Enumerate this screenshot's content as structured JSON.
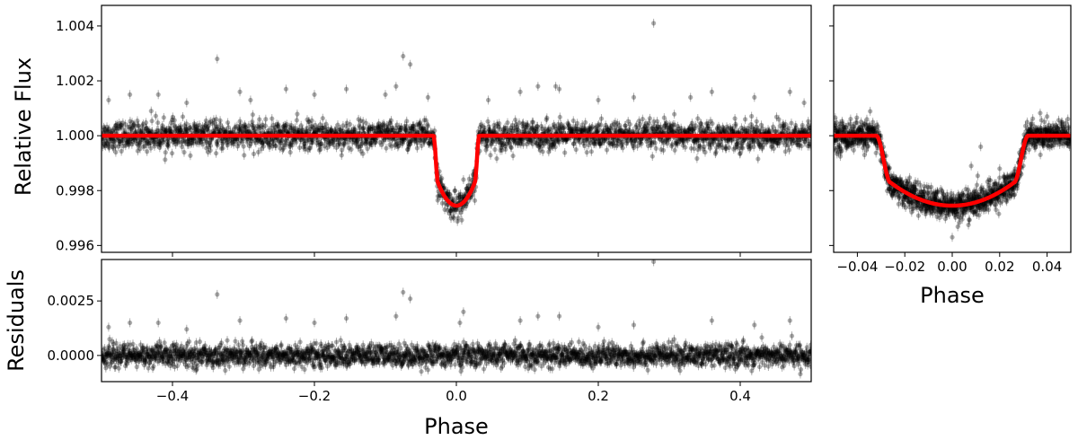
{
  "chart_data": [
    {
      "id": "main-flux",
      "type": "scatter",
      "xlabel": "",
      "ylabel": "Relative Flux",
      "xlim": [
        -0.5,
        0.5
      ],
      "ylim": [
        0.99575,
        1.00475
      ],
      "xticks": [
        -0.4,
        -0.2,
        0.0,
        0.2,
        0.4
      ],
      "xtick_labels": [
        "",
        "",
        "",
        "",
        ""
      ],
      "yticks": [
        0.996,
        0.998,
        1.0,
        1.002,
        1.004
      ],
      "ytick_labels": [
        "0.996",
        "0.998",
        "1.000",
        "1.002",
        "1.004"
      ],
      "grid": false,
      "series": [
        {
          "kind": "data",
          "marker": "points-with-errorbars",
          "color": "#000000",
          "baseline": 1.0,
          "scatter_sigma": 0.00025,
          "typical_error": 0.00022,
          "outliers": [
            [
              -0.49,
              1.0013
            ],
            [
              -0.46,
              1.0015
            ],
            [
              -0.43,
              1.0009
            ],
            [
              -0.42,
              1.0015
            ],
            [
              -0.38,
              1.0012
            ],
            [
              -0.337,
              1.0028
            ],
            [
              -0.305,
              1.0016
            ],
            [
              -0.29,
              1.0013
            ],
            [
              -0.24,
              1.0017
            ],
            [
              -0.2,
              1.0015
            ],
            [
              -0.155,
              1.0017
            ],
            [
              -0.1,
              1.0015
            ],
            [
              -0.085,
              1.0018
            ],
            [
              -0.075,
              1.0029
            ],
            [
              -0.065,
              1.0026
            ],
            [
              -0.04,
              1.0014
            ],
            [
              0.01,
              0.9984
            ],
            [
              0.045,
              1.0013
            ],
            [
              0.09,
              1.0016
            ],
            [
              0.115,
              1.0018
            ],
            [
              0.14,
              1.0018
            ],
            [
              0.145,
              1.0017
            ],
            [
              0.2,
              1.0013
            ],
            [
              0.25,
              1.0014
            ],
            [
              0.278,
              1.0041
            ],
            [
              0.33,
              1.0014
            ],
            [
              0.36,
              1.0016
            ],
            [
              0.42,
              1.0014
            ],
            [
              0.47,
              1.0016
            ],
            [
              0.49,
              1.0012
            ]
          ]
        },
        {
          "kind": "model",
          "line_color": "#ff0000",
          "depth": 0.00255,
          "t14": 0.064,
          "ingress": 0.006,
          "limb_darkening": 0.5
        }
      ]
    },
    {
      "id": "zoom-flux",
      "type": "scatter",
      "xlabel": "Phase",
      "ylabel": "",
      "xlim": [
        -0.05,
        0.05
      ],
      "ylim": [
        0.99575,
        1.00475
      ],
      "xticks": [
        -0.04,
        -0.02,
        0.0,
        0.02,
        0.04
      ],
      "xtick_labels": [
        "−0.04",
        "−0.02",
        "0.00",
        "0.02",
        "0.04"
      ],
      "yticks": [
        0.996,
        0.998,
        1.0,
        1.002,
        1.004
      ],
      "ytick_labels": [
        "",
        "",
        "",
        "",
        ""
      ],
      "grid": false,
      "outliers": [
        [
          -0.048,
          0.9994
        ],
        [
          -0.036,
          1.0006
        ],
        [
          0.0,
          0.9963
        ],
        [
          0.008,
          0.9989
        ],
        [
          0.012,
          0.9996
        ],
        [
          0.02,
          0.9988
        ],
        [
          0.04,
          1.0007
        ],
        [
          0.046,
          1.0005
        ]
      ]
    },
    {
      "id": "residuals",
      "type": "scatter",
      "xlabel": "Phase",
      "ylabel": "Residuals",
      "xlim": [
        -0.5,
        0.5
      ],
      "ylim": [
        -0.0012,
        0.0044
      ],
      "xticks": [
        -0.4,
        -0.2,
        0.0,
        0.2,
        0.4
      ],
      "xtick_labels": [
        "−0.4",
        "−0.2",
        "0.0",
        "0.2",
        "0.4"
      ],
      "yticks": [
        0.0,
        0.0025
      ],
      "ytick_labels": [
        "0.0000",
        "0.0025"
      ],
      "grid": false,
      "baseline": 0.0,
      "scatter_sigma": 0.00025,
      "outliers": [
        [
          -0.49,
          0.0013
        ],
        [
          -0.46,
          0.0015
        ],
        [
          -0.42,
          0.0015
        ],
        [
          -0.38,
          0.0012
        ],
        [
          -0.337,
          0.0028
        ],
        [
          -0.305,
          0.0016
        ],
        [
          -0.24,
          0.0017
        ],
        [
          -0.2,
          0.0015
        ],
        [
          -0.155,
          0.0017
        ],
        [
          -0.085,
          0.0018
        ],
        [
          -0.075,
          0.0029
        ],
        [
          -0.065,
          0.0026
        ],
        [
          0.005,
          0.0015
        ],
        [
          0.01,
          0.002
        ],
        [
          0.09,
          0.0016
        ],
        [
          0.115,
          0.0018
        ],
        [
          0.145,
          0.0018
        ],
        [
          0.2,
          0.0013
        ],
        [
          0.25,
          0.0014
        ],
        [
          0.278,
          0.0043
        ],
        [
          0.36,
          0.0016
        ],
        [
          0.42,
          0.0014
        ],
        [
          0.47,
          0.0016
        ]
      ]
    }
  ]
}
